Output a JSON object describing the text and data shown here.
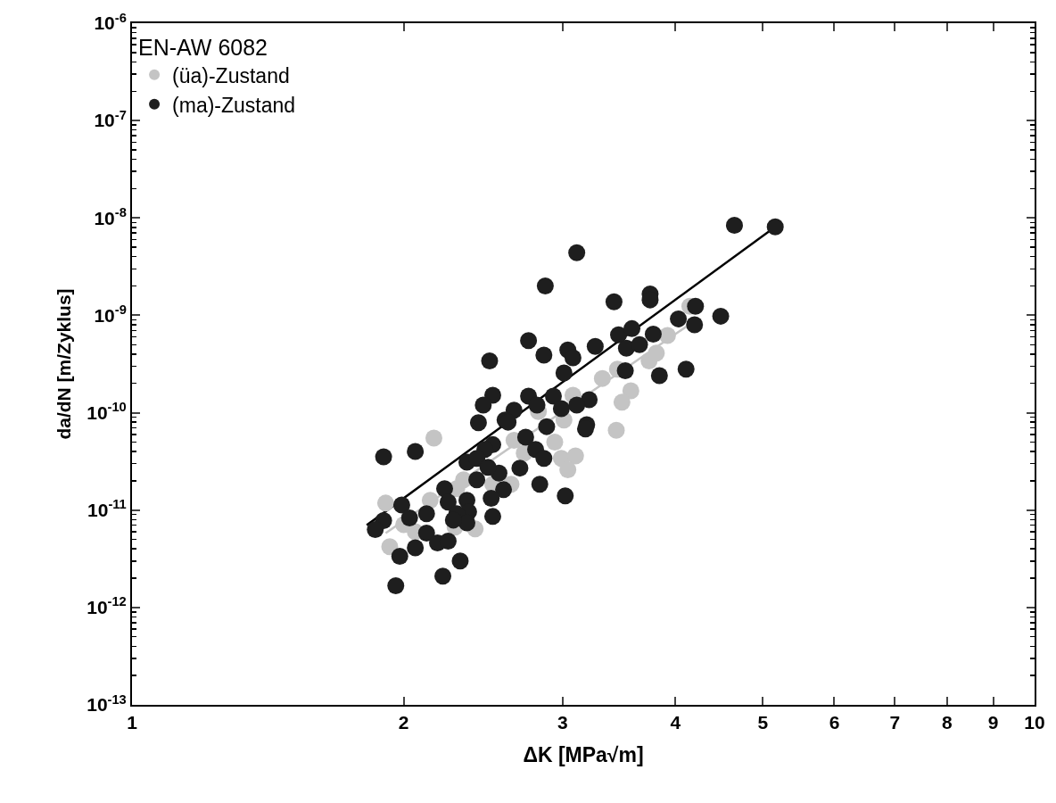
{
  "chart_data": {
    "type": "scatter",
    "xlabel": "ΔK [MPa√m]",
    "ylabel": "da/dN [m/Zyklus]",
    "legend_title": "EN-AW 6082",
    "log": "xy",
    "grid": false,
    "legend": "top left",
    "xlim": [
      1,
      10
    ],
    "xticks": [
      1,
      2,
      3,
      4,
      5,
      6,
      7,
      8,
      9,
      10
    ],
    "ylim": [
      1e-13,
      1e-06
    ],
    "yticks": [
      {
        "value": 1e-13,
        "label": "10$^{-13}$"
      },
      {
        "value": 1e-12,
        "label": "10$^{-12}$"
      },
      {
        "value": 1e-11,
        "label": "10$^{-11}$"
      },
      {
        "value": 1e-10,
        "label": "10$^{-10}$"
      },
      {
        "value": 1e-09,
        "label": "10$^{-9}$"
      },
      {
        "value": 1e-08,
        "label": "10$^{-8}$"
      },
      {
        "value": 1e-07,
        "label": "10$^{-7}$"
      },
      {
        "value": 1e-06,
        "label": "10$^{-6}$"
      }
    ],
    "series": [
      {
        "name": "(üa)-Zustand",
        "color": "#c4c4c4",
        "marker": "circle",
        "x": [
          3.32,
          3.45,
          3.57,
          3.49,
          3.44,
          3.74,
          3.81,
          3.92,
          4.15,
          2.16,
          1.91,
          1.93,
          2.06,
          2.28,
          2.4,
          2.29,
          2.33,
          2.51,
          2.63,
          2.65,
          2.72,
          2.94,
          2.99,
          3.1,
          3.04,
          2.0,
          2.14,
          3.08,
          2.82,
          3.01
        ],
        "values": [
          2.25e-10,
          2.8e-10,
          1.68e-10,
          1.28e-10,
          6.6e-11,
          3.4e-10,
          4.1e-10,
          6.2e-10,
          1.24e-09,
          5.5e-11,
          1.18e-11,
          4.2e-12,
          6e-12,
          6.7e-12,
          6.4e-12,
          1.66e-11,
          2.05e-11,
          1.84e-11,
          1.84e-11,
          5.2e-11,
          3.85e-11,
          5e-11,
          3.4e-11,
          3.6e-11,
          2.6e-11,
          7.1e-12,
          1.26e-11,
          1.51e-10,
          1.03e-10,
          8.4e-11
        ]
      },
      {
        "name": "(ma)-Zustand",
        "color": "#1e1e1e",
        "marker": "circle",
        "x": [
          3.11,
          2.87,
          3.42,
          2.75,
          2.86,
          3.04,
          3.08,
          3.26,
          3.46,
          2.49,
          3.01,
          2.51,
          2.45,
          2.75,
          2.93,
          2.65,
          2.59,
          2.42,
          2.81,
          3.21,
          3.11,
          3.19,
          2.88,
          2.99,
          1.9,
          2.06,
          2.61,
          2.73,
          2.51,
          2.46,
          2.35,
          2.41,
          2.8,
          2.86,
          2.69,
          2.55,
          2.48,
          2.41,
          2.58,
          2.5,
          2.22,
          2.24,
          2.35,
          2.36,
          2.29,
          2.35,
          2.27,
          2.51,
          2.83,
          3.02,
          1.99,
          2.03,
          2.12,
          2.12,
          1.9,
          1.86,
          2.06,
          1.98,
          2.18,
          2.24,
          2.31,
          2.21,
          1.96,
          3.18,
          4.65,
          5.16,
          3.75,
          3.75,
          4.21,
          4.03,
          4.49,
          4.2,
          3.58,
          3.78,
          3.53,
          3.65,
          3.52,
          3.84,
          4.11
        ],
        "values": [
          4.4e-09,
          2e-09,
          1.38e-09,
          5.5e-10,
          3.9e-10,
          4.4e-10,
          3.66e-10,
          4.8e-10,
          6.3e-10,
          3.4e-10,
          2.56e-10,
          1.51e-10,
          1.2e-10,
          1.48e-10,
          1.48e-10,
          1.06e-10,
          8.4e-11,
          7.9e-11,
          1.2e-10,
          1.36e-10,
          1.2e-10,
          7.55e-11,
          7.2e-11,
          1.1e-10,
          3.53e-11,
          4e-11,
          8e-11,
          5.6e-11,
          4.7e-11,
          4.2e-11,
          3.1e-11,
          3.4e-11,
          4.2e-11,
          3.4e-11,
          2.7e-11,
          2.4e-11,
          2.75e-11,
          2.05e-11,
          1.62e-11,
          1.32e-11,
          1.66e-11,
          1.21e-11,
          1.26e-11,
          9.6e-12,
          9.2e-12,
          7.4e-12,
          7.9e-12,
          8.6e-12,
          1.84e-11,
          1.4e-11,
          1.13e-11,
          8.3e-12,
          9.2e-12,
          5.8e-12,
          7.8e-12,
          6.3e-12,
          4.1e-12,
          3.35e-12,
          4.6e-12,
          4.8e-12,
          3e-12,
          2.1e-12,
          1.67e-12,
          6.8e-11,
          8.4e-09,
          8.1e-09,
          1.66e-09,
          1.44e-09,
          1.24e-09,
          9.2e-10,
          9.8e-10,
          8e-10,
          7.3e-10,
          6.4e-10,
          4.6e-10,
          5e-10,
          2.7e-10,
          2.4e-10,
          2.8e-10
        ]
      },
      {
        "type": "line",
        "color": "#c4c4c4",
        "line_style": "solid",
        "x": [
          1.91,
          4.18
        ],
        "values": [
          5.8e-12,
          8.5e-10
        ]
      },
      {
        "type": "line",
        "color": "#000000",
        "line_style": "solid",
        "x": [
          1.82,
          5.16
        ],
        "values": [
          7e-12,
          8.1e-09
        ]
      }
    ]
  }
}
